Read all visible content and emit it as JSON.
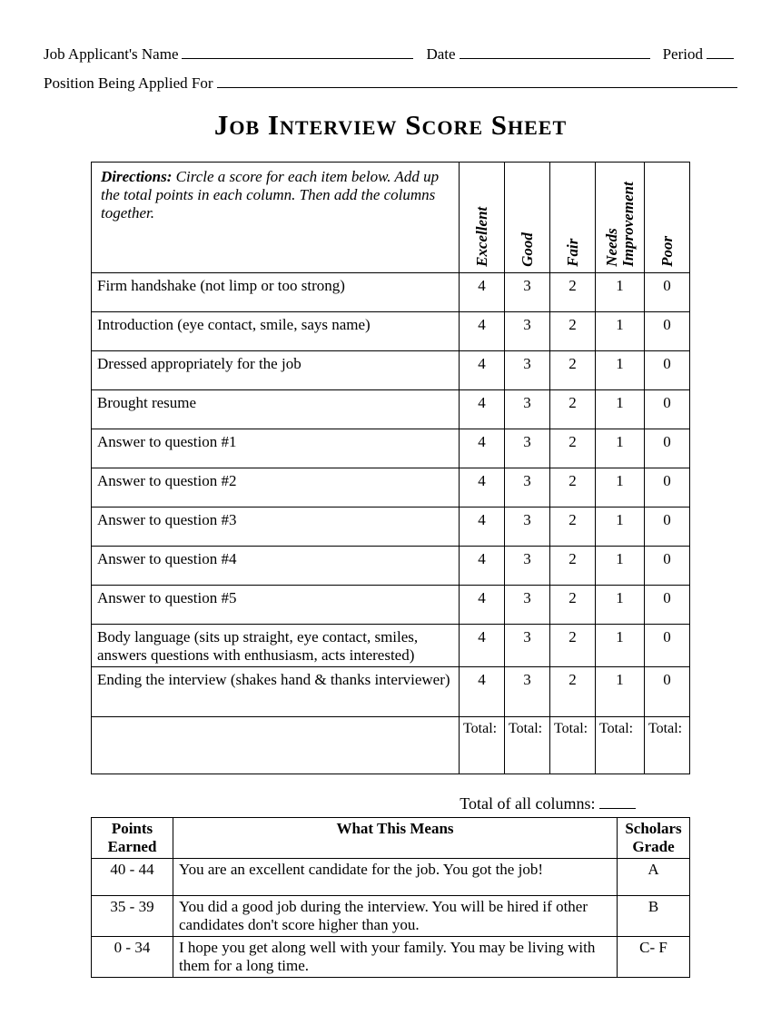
{
  "header": {
    "applicant_label": "Job Applicant's Name",
    "date_label": "Date",
    "period_label": "Period",
    "position_label": "Position Being Applied For"
  },
  "title": "Job Interview Score Sheet",
  "directions": {
    "label": "Directions:",
    "text": "  Circle a score for each item below.  Add up the total points in each column. Then add the columns together."
  },
  "columns": [
    "Excellent",
    "Good",
    "Fair",
    "Needs Improvement",
    "Poor"
  ],
  "score_values": [
    4,
    3,
    2,
    1,
    0
  ],
  "items": [
    "Firm handshake (not limp or too strong)",
    "Introduction (eye contact, smile, says name)",
    "Dressed appropriately for the job",
    "Brought resume",
    "Answer to question #1",
    "Answer to question #2",
    "Answer to question #3",
    "Answer to question #4",
    "Answer to question #5",
    "Body language (sits up straight, eye contact, smiles, answers questions with enthusiasm, acts interested)",
    "Ending the interview (shakes hand & thanks interviewer)"
  ],
  "total_label": "Total:",
  "total_all_label": "Total of all columns:",
  "rubric": {
    "headers": [
      "Points Earned",
      "What This Means",
      "Scholars Grade"
    ],
    "rows": [
      {
        "points": "40 - 44",
        "means": "You are an excellent candidate for the job.  You got the job!",
        "grade": "A"
      },
      {
        "points": "35 - 39",
        "means": "You did a good job during the interview.  You will be hired if other candidates don't score higher than you.",
        "grade": "B"
      },
      {
        "points": "0 - 34",
        "means": "I hope you get along well with your family.  You may be living with them for a long time.",
        "grade": "C- F"
      }
    ]
  }
}
